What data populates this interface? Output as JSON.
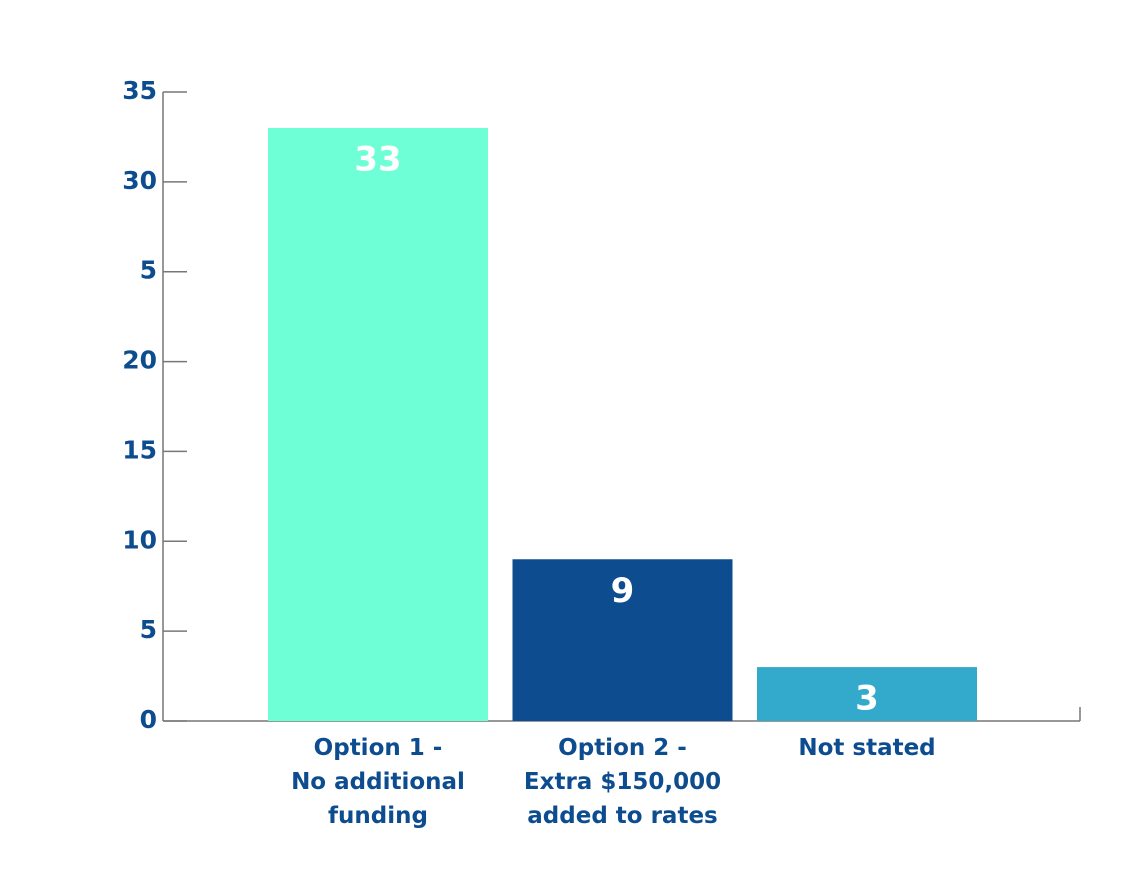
{
  "chart_data": {
    "type": "bar",
    "categories": [
      "Option 1 -\nNo additional\nfunding",
      "Option 2 -\nExtra $150,000\nadded to rates",
      "Not stated"
    ],
    "values": [
      33,
      9,
      3
    ],
    "colors": [
      "#6fffd6",
      "#0d4d8f",
      "#33aacc"
    ],
    "ylim": [
      0,
      35
    ],
    "yticks": [
      0,
      5,
      10,
      15,
      20,
      {
        "value": 25,
        "label": "5"
      },
      30,
      35
    ],
    "grid": false
  }
}
